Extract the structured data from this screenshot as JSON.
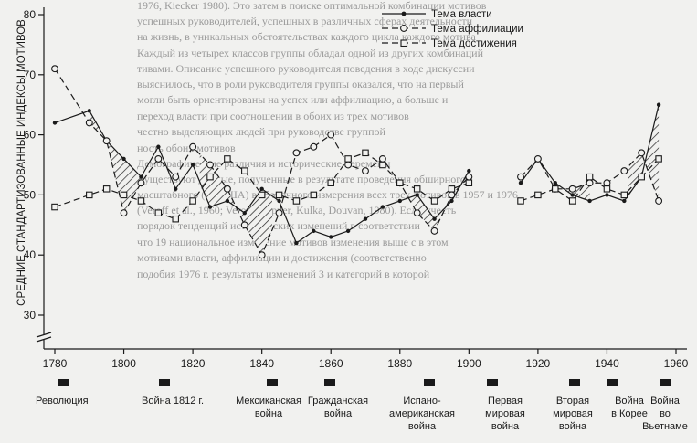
{
  "chart_data": {
    "type": "line",
    "ylabel": "СРЕДНИЕ СТАНДАРТИЗОВАННЫЕ ИНДЕКСЫ МОТИВОВ",
    "ylim": [
      25,
      80
    ],
    "yticks": [
      30,
      40,
      50,
      60,
      70,
      80
    ],
    "xlim": [
      1770,
      1970
    ],
    "xticks": [
      1780,
      1800,
      1820,
      1840,
      1860,
      1880,
      1900,
      1920,
      1940,
      1960
    ],
    "grid": false,
    "legend_position": "top-center",
    "series": [
      {
        "name": "Тема власти",
        "style": "solid-dot",
        "segments": [
          [
            [
              1780,
              62
            ],
            [
              1790,
              64
            ],
            [
              1795,
              59
            ],
            [
              1800,
              56
            ],
            [
              1805,
              53
            ],
            [
              1810,
              58
            ],
            [
              1815,
              51
            ],
            [
              1820,
              55
            ],
            [
              1825,
              48
            ],
            [
              1830,
              49
            ],
            [
              1835,
              47
            ],
            [
              1840,
              51
            ],
            [
              1845,
              49
            ],
            [
              1850,
              42
            ],
            [
              1855,
              44
            ],
            [
              1860,
              43
            ],
            [
              1865,
              44
            ],
            [
              1870,
              46
            ],
            [
              1875,
              48
            ],
            [
              1880,
              49
            ],
            [
              1885,
              50
            ],
            [
              1890,
              46
            ],
            [
              1895,
              49
            ],
            [
              1900,
              54
            ]
          ],
          [
            [
              1915,
              52
            ],
            [
              1920,
              56
            ],
            [
              1925,
              52
            ],
            [
              1930,
              50
            ],
            [
              1935,
              49
            ],
            [
              1940,
              50
            ],
            [
              1945,
              49
            ],
            [
              1950,
              53
            ],
            [
              1955,
              65
            ]
          ]
        ]
      },
      {
        "name": "Тема аффилиации",
        "style": "dashed-circle",
        "segments": [
          [
            [
              1780,
              71
            ],
            [
              1790,
              62
            ],
            [
              1795,
              59
            ],
            [
              1800,
              47
            ],
            [
              1805,
              52
            ],
            [
              1810,
              56
            ],
            [
              1815,
              53
            ],
            [
              1820,
              58
            ],
            [
              1825,
              55
            ],
            [
              1830,
              51
            ],
            [
              1835,
              45
            ],
            [
              1840,
              40
            ],
            [
              1845,
              47
            ],
            [
              1850,
              57
            ],
            [
              1855,
              58
            ],
            [
              1860,
              60
            ],
            [
              1865,
              55
            ],
            [
              1870,
              54
            ],
            [
              1875,
              56
            ],
            [
              1880,
              52
            ],
            [
              1885,
              47
            ],
            [
              1890,
              44
            ],
            [
              1895,
              50
            ],
            [
              1900,
              53
            ]
          ],
          [
            [
              1915,
              53
            ],
            [
              1920,
              56
            ],
            [
              1925,
              51
            ],
            [
              1930,
              51
            ],
            [
              1935,
              52
            ],
            [
              1940,
              52
            ],
            [
              1945,
              54
            ],
            [
              1950,
              57
            ],
            [
              1955,
              49
            ]
          ]
        ]
      },
      {
        "name": "Тема достижения",
        "style": "dashed-square",
        "segments": [
          [
            [
              1780,
              48
            ],
            [
              1790,
              50
            ],
            [
              1795,
              51
            ],
            [
              1800,
              50
            ],
            [
              1805,
              49
            ],
            [
              1810,
              47
            ],
            [
              1815,
              46
            ],
            [
              1820,
              49
            ],
            [
              1825,
              53
            ],
            [
              1830,
              56
            ],
            [
              1835,
              54
            ],
            [
              1840,
              50
            ],
            [
              1845,
              50
            ],
            [
              1850,
              49
            ],
            [
              1855,
              50
            ],
            [
              1860,
              52
            ],
            [
              1865,
              56
            ],
            [
              1870,
              57
            ],
            [
              1875,
              55
            ],
            [
              1880,
              52
            ],
            [
              1885,
              51
            ],
            [
              1890,
              49
            ],
            [
              1895,
              51
            ],
            [
              1900,
              52
            ]
          ],
          [
            [
              1915,
              49
            ],
            [
              1920,
              50
            ],
            [
              1925,
              51
            ],
            [
              1930,
              49
            ],
            [
              1935,
              53
            ],
            [
              1940,
              51
            ],
            [
              1945,
              50
            ],
            [
              1950,
              53
            ],
            [
              1955,
              56
            ]
          ]
        ]
      }
    ],
    "shaded_intervals": [
      [
        1790,
        1805
      ],
      [
        1822,
        1843
      ],
      [
        1882,
        1900
      ],
      [
        1925,
        1935
      ],
      [
        1946,
        1956
      ]
    ],
    "events": [
      {
        "label": "Революция",
        "year": 1782
      },
      {
        "label": "Война 1812 г.",
        "year": 1813
      },
      {
        "label": "Мексиканская война",
        "year": 1847
      },
      {
        "label": "Гражданская война",
        "year": 1863
      },
      {
        "label": "Испано-американская война",
        "year": 1898
      },
      {
        "label": "Первая мировая война",
        "year": 1917
      },
      {
        "label": "Вторая мировая война",
        "year": 1942
      },
      {
        "label": "Война в Корее",
        "year": 1951
      },
      {
        "label": "Война во Вьетнаме",
        "year": 1967
      }
    ]
  },
  "event_labels": {
    "revolution": "Революция",
    "war1812": "Война 1812 г.",
    "mexican_1": "Мексиканская",
    "mexican_2": "война",
    "civil_1": "Гражданская",
    "civil_2": "война",
    "spanish_1": "Испано-",
    "spanish_2": "американская",
    "spanish_3": "война",
    "ww1_1": "Первая",
    "ww1_2": "мировая",
    "ww1_3": "война",
    "ww2_1": "Вторая",
    "ww2_2": "мировая",
    "ww2_3": "война",
    "korea_1": "Война",
    "korea_2": "в Корее",
    "vietnam_1": "Война",
    "vietnam_2": "во",
    "vietnam_3": "Вьетнаме"
  },
  "background_text": [
    "1976, Kiecker 1980). Это затем в поиске оптимальной комбинации мотивов",
    "успешных руководителей, успешных в различных сферах деятельности",
    "на жизнь, в уникальных обстоятельствах каждого цикла каждого мотива",
    "Каждый из четырех классов группы обладал одной из других комбинаций",
    "тивами. Описание успешного руководителя поведения в ходе дискуссии",
    "выяснилось, что в роли руководителя группы оказался, что на первый",
    "могли быть ориентированы на успех или аффилиацию, а больше и",
    "переход власти при соотношении в обоих из трех мотивов",
    "честно выделяющих людей при руководстве группой",
    "ность обоих мотивов",
    "Демографические различия и исторические перемены",
    "Существуют данные, полученные в результате проведения обширного",
    "масштабного (по США) выборочного измерения всех трех мотивов в 1957 и 1976",
    "(Veroff et al., 1960; Veroff, Depner, Kulka, Douvan, 1980). Если учесть",
    "порядок тенденций исторических изменений в соответствии",
    "что 19 национальное измерение мотивов изменения выше с в этом",
    "мотивами власти, аффилиации и достижения (соответственно",
    "подобия 1976 г. результаты изменений 3 и категорий в которой"
  ]
}
